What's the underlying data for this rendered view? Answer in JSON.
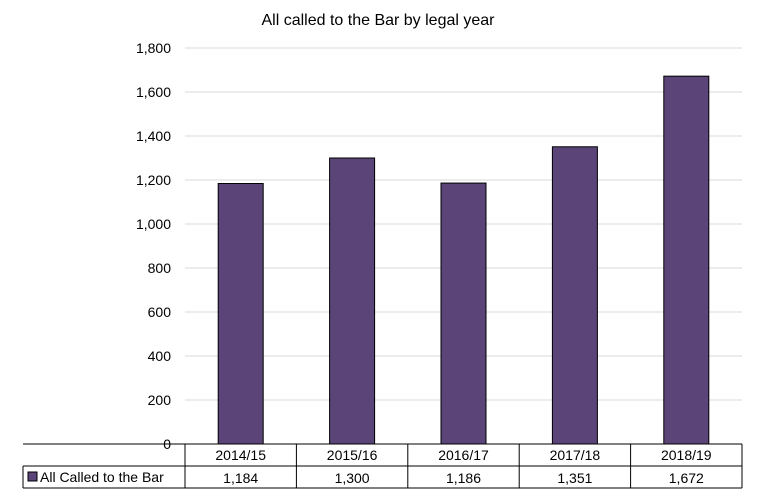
{
  "chart_data": {
    "type": "bar",
    "title": "All called to the Bar by legal year",
    "xlabel": "",
    "ylabel": "",
    "categories": [
      "2014/15",
      "2015/16",
      "2016/17",
      "2017/18",
      "2018/19"
    ],
    "series": [
      {
        "name": "All Called to the Bar",
        "values": [
          1184,
          1300,
          1186,
          1351,
          1672
        ]
      }
    ],
    "data_labels": [
      "1,184",
      "1,300",
      "1,186",
      "1,351",
      "1,672"
    ],
    "yticks": [
      "0",
      "200",
      "400",
      "600",
      "800",
      "1,000",
      "1,200",
      "1,400",
      "1,600",
      "1,800"
    ],
    "ylim": [
      0,
      1800
    ],
    "grid": true,
    "legend_position": "data-table",
    "bar_color": "#5a4478",
    "gridline_color": "#d9d9d9"
  }
}
